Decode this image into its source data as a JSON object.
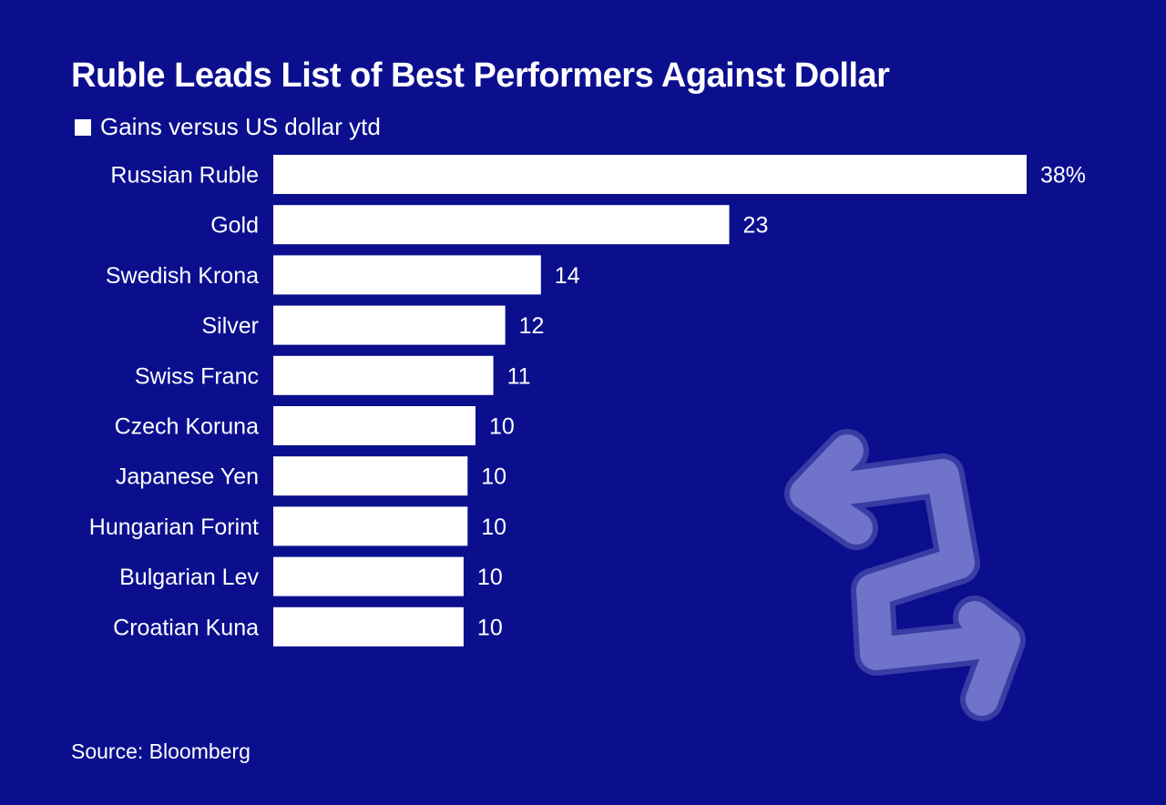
{
  "colors": {
    "background": "#0b0f8e",
    "bar": "#ffffff",
    "text": "#ffffff",
    "decoration": "#6f73c9"
  },
  "decoration": {
    "icon": "swap-arrows-icon"
  },
  "source": "Source: Bloomberg",
  "chart_data": {
    "type": "bar",
    "orientation": "horizontal",
    "title": "Ruble Leads List of Best Performers Against Dollar",
    "legend": [
      "Gains versus US dollar ytd"
    ],
    "legend_position": "top-left",
    "categories": [
      "Russian Ruble",
      "Gold",
      "Swedish Krona",
      "Silver",
      "Swiss Franc",
      "Czech Koruna",
      "Japanese Yen",
      "Hungarian Forint",
      "Bulgarian Lev",
      "Croatian Kuna"
    ],
    "series": [
      {
        "name": "Gains versus US dollar ytd",
        "values": [
          38,
          23,
          13.5,
          11.7,
          11.1,
          10.2,
          9.8,
          9.8,
          9.6,
          9.6
        ]
      }
    ],
    "data_labels": [
      "38%",
      "23",
      "14",
      "12",
      "11",
      "10",
      "10",
      "10",
      "10",
      "10"
    ],
    "xlim": [
      0,
      38
    ],
    "grid": false,
    "xlabel": "",
    "ylabel": ""
  }
}
